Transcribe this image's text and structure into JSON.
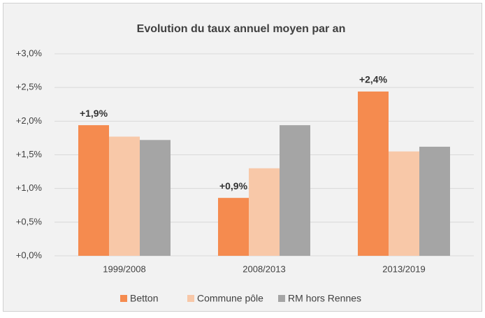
{
  "chart_data": {
    "type": "bar",
    "title": "Evolution du taux annuel moyen par an",
    "categories": [
      "1999/2008",
      "2008/2013",
      "2013/2019"
    ],
    "series": [
      {
        "name": "Betton",
        "color": "#f58b4f",
        "values": [
          1.94,
          0.86,
          2.44
        ],
        "value_labels": [
          "+1,9%",
          "+0,9%",
          "+2,4%"
        ]
      },
      {
        "name": "Commune pôle",
        "color": "#f8c8a8",
        "values": [
          1.77,
          1.3,
          1.55
        ]
      },
      {
        "name": "RM hors Rennes",
        "color": "#a5a5a5",
        "values": [
          1.72,
          1.94,
          1.62
        ]
      }
    ],
    "ylim": [
      0,
      3
    ],
    "yticks": [
      {
        "value": 0,
        "label": "+0,0%"
      },
      {
        "value": 0.5,
        "label": "+0,5%"
      },
      {
        "value": 1,
        "label": "+1,0%"
      },
      {
        "value": 1.5,
        "label": "+1,5%"
      },
      {
        "value": 2,
        "label": "+2,0%"
      },
      {
        "value": 2.5,
        "label": "+2,5%"
      },
      {
        "value": 3,
        "label": "+3,0%"
      }
    ],
    "grid": true,
    "legend": "bottom"
  }
}
